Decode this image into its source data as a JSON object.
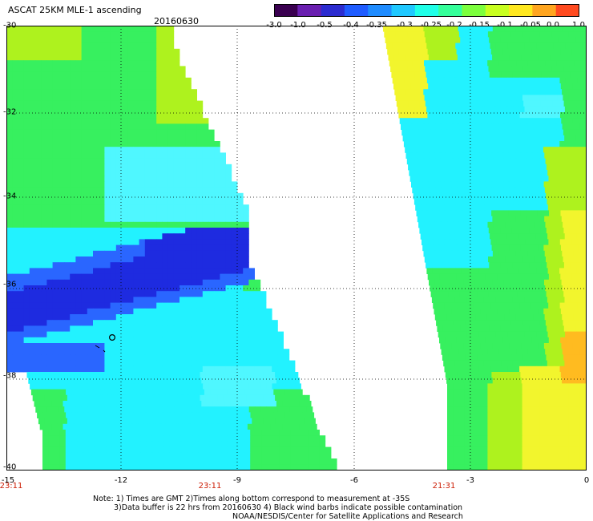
{
  "header": {
    "title": "ASCAT 25KM MLE-1 ascending",
    "date": "20160630"
  },
  "colorbar": {
    "labels": [
      "-3.0",
      "-1.0",
      "-0.5",
      "-0.4",
      "-0.35",
      "-0.3",
      "-0.25",
      "-0.2",
      "-0.15",
      "-0.1",
      "-0.05",
      "0.0",
      "1.0"
    ],
    "colors": [
      "#3a0050",
      "#6a1fb0",
      "#2c2cd0",
      "#1f5cff",
      "#1f8cff",
      "#1fc8ff",
      "#1fffe8",
      "#35ff9a",
      "#7cff3d",
      "#c8ff1f",
      "#ffe81f",
      "#ffa51f",
      "#ff4a1f"
    ]
  },
  "axes": {
    "y_labels": [
      "-30",
      "-32",
      "-34",
      "-36",
      "-38",
      "-40"
    ],
    "x_labels": [
      "-15",
      "-12",
      "-9",
      "-6",
      "-3",
      "0"
    ]
  },
  "times": [
    "23:11",
    "23:11",
    "21:31"
  ],
  "notes": {
    "line1": "Note: 1) Times are GMT 2)Times along bottom correspond to measurement at -35S",
    "line2": "3)Data buffer is 22 hrs from 20160630 4) Black wind barbs indicate possible contamination",
    "line3": "NOAA/NESDIS/Center for Satellite Applications and Research"
  },
  "map_colors": {
    "blue_dark": "#1e2be0",
    "blue_mid": "#2a66ff",
    "cyan": "#22f2ff",
    "cyan_light": "#4ff7ff",
    "green": "#37f05f",
    "yellow_green": "#aef21e",
    "yellow": "#f2f52d",
    "orange": "#ffbb20"
  }
}
